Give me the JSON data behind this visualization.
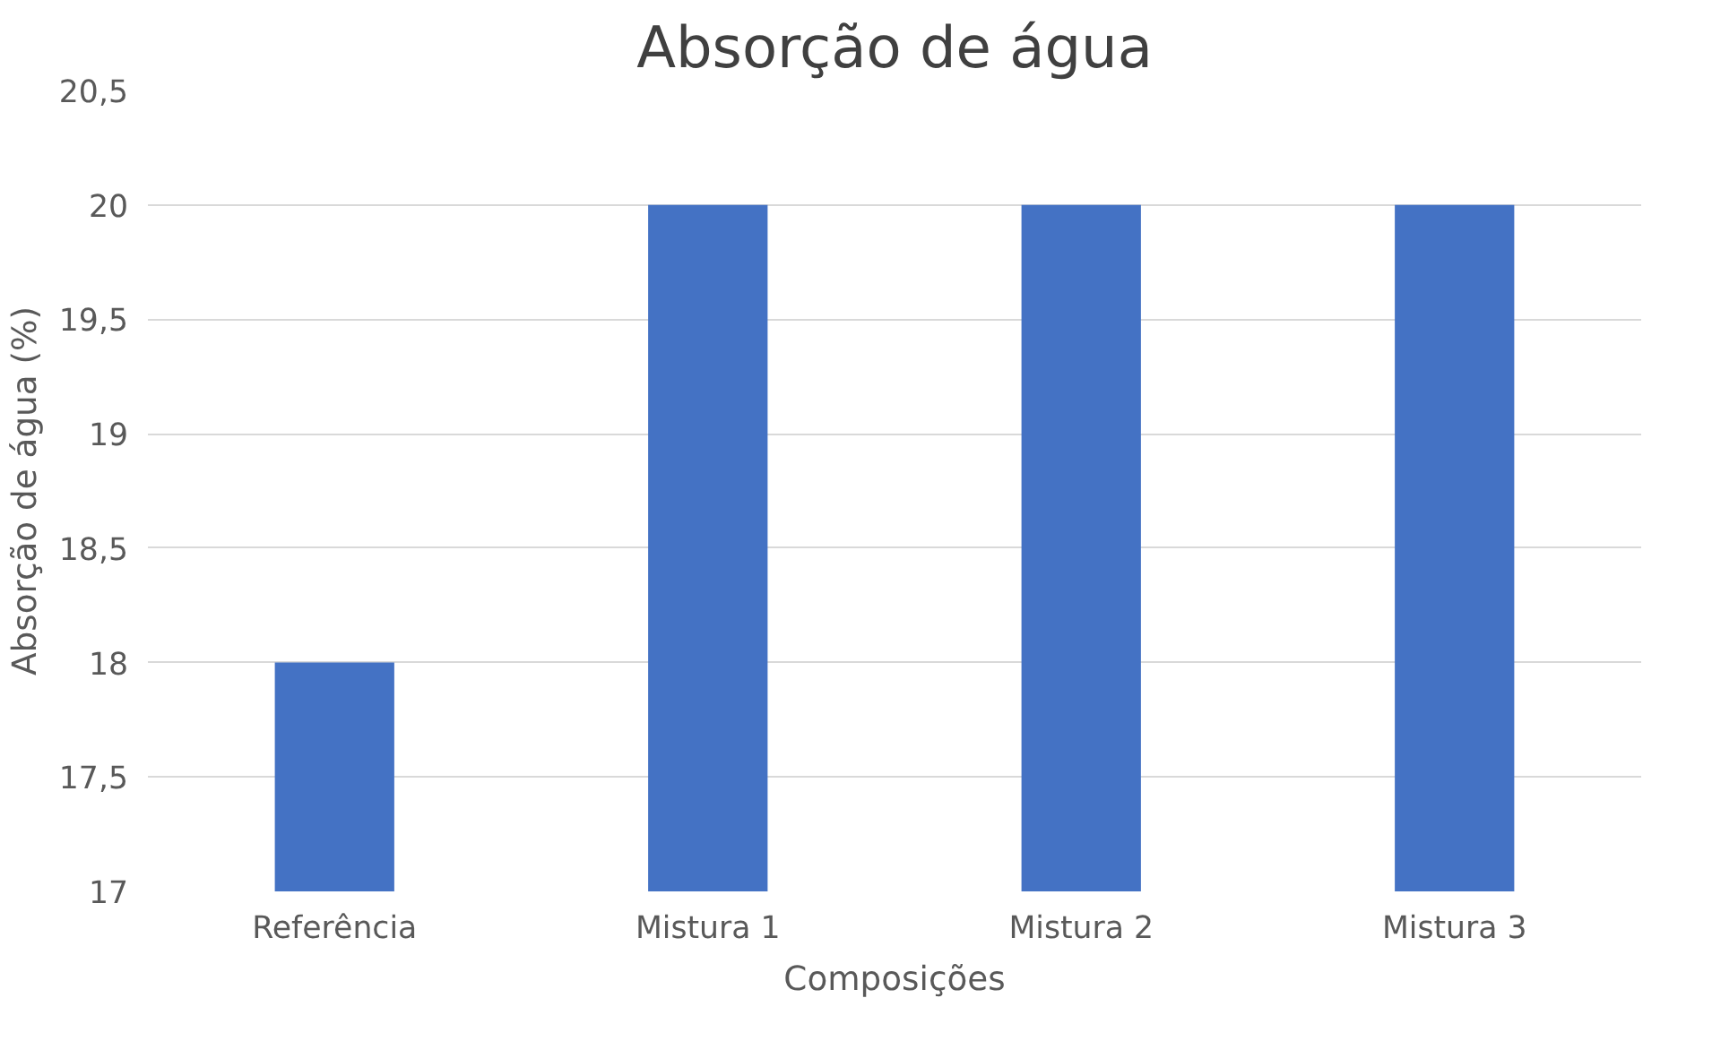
{
  "chart_data": {
    "type": "bar",
    "title": "Absorção de água",
    "xlabel": "Composições",
    "ylabel": "Absorção de água (%)",
    "categories": [
      "Referência",
      "Mistura 1",
      "Mistura 2",
      "Mistura 3"
    ],
    "values": [
      18,
      20,
      20,
      20
    ],
    "color": "#4472c4",
    "ylim": [
      17,
      20.5
    ],
    "yticks": [
      17,
      {
        "value": 17.5,
        "label": "17,5"
      },
      18,
      {
        "value": 18.5,
        "label": "18,5"
      },
      19,
      {
        "value": 19.5,
        "label": "19,5"
      },
      20,
      {
        "value": 20.5,
        "label": "20,5"
      }
    ],
    "grid": "y"
  }
}
